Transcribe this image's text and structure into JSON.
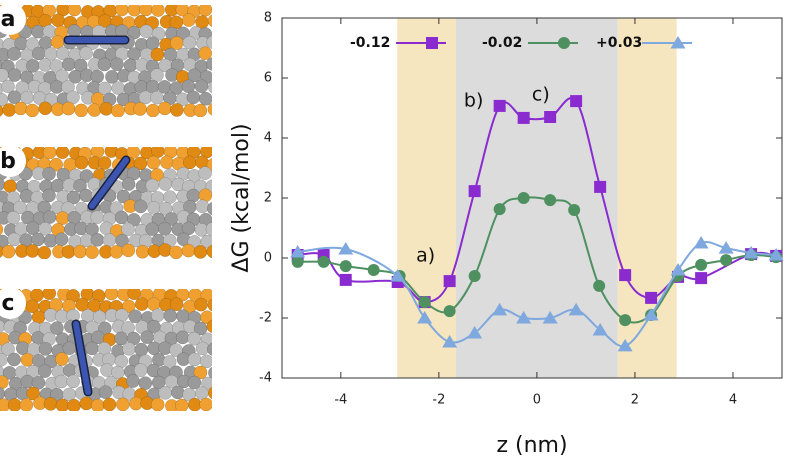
{
  "panels": [
    {
      "label": "a"
    },
    {
      "label": "b"
    },
    {
      "label": "c"
    }
  ],
  "chart_data": {
    "type": "line",
    "xlabel": "z (nm)",
    "ylabel": "ΔG (kcal/mol)",
    "xlim": [
      -5.2,
      5
    ],
    "ylim": [
      -4,
      8
    ],
    "xticks": [
      -4,
      -2,
      0,
      2,
      4
    ],
    "yticks": [
      -4,
      -2,
      0,
      2,
      4,
      6,
      8
    ],
    "regions": [
      {
        "from": -2.85,
        "to": -1.65,
        "color": "#f6e6c0"
      },
      {
        "from": -1.65,
        "to": 1.65,
        "color": "#dcdcdc"
      },
      {
        "from": 1.65,
        "to": 2.85,
        "color": "#f6e6c0"
      }
    ],
    "legend": "top",
    "series": [
      {
        "name": "-0.12",
        "color": "#8a2bd0",
        "marker": "square",
        "x": [
          -4.88,
          -4.35,
          -3.9,
          -2.84,
          -2.29,
          -1.78,
          -1.27,
          -0.76,
          -0.27,
          0.27,
          0.8,
          1.29,
          1.8,
          2.33,
          2.88,
          3.35,
          4.37,
          4.88
        ],
        "values": [
          0.1,
          0.1,
          -0.73,
          -0.8,
          -1.47,
          -0.77,
          2.23,
          5.07,
          4.67,
          4.7,
          5.23,
          2.37,
          -0.57,
          -1.33,
          -0.63,
          -0.67,
          0.13,
          0.07
        ]
      },
      {
        "name": "-0.02",
        "color": "#4e9060",
        "marker": "circle",
        "x": [
          -4.88,
          -4.35,
          -3.9,
          -3.33,
          -2.8,
          -2.29,
          -1.78,
          -1.27,
          -0.76,
          -0.27,
          0.27,
          0.76,
          1.27,
          1.8,
          2.33,
          2.88,
          3.35,
          3.86,
          4.37,
          4.88
        ],
        "values": [
          -0.13,
          -0.13,
          -0.27,
          -0.4,
          -0.6,
          -1.47,
          -1.77,
          -0.6,
          1.63,
          2.0,
          1.93,
          1.6,
          -0.93,
          -2.07,
          -1.9,
          -0.6,
          -0.23,
          -0.07,
          0.1,
          0.03
        ]
      },
      {
        "name": "+0.03",
        "color": "#7fa8de",
        "marker": "triangle",
        "x": [
          -4.88,
          -3.9,
          -2.84,
          -2.29,
          -1.78,
          -1.27,
          -0.76,
          -0.27,
          0.27,
          0.8,
          1.29,
          1.8,
          2.33,
          2.88,
          3.35,
          3.86,
          4.37,
          4.88
        ],
        "values": [
          0.2,
          0.3,
          -0.6,
          -2.0,
          -2.8,
          -2.5,
          -1.73,
          -2.0,
          -2.0,
          -1.73,
          -2.4,
          -2.93,
          -1.9,
          -0.4,
          0.5,
          0.33,
          0.17,
          0.1
        ]
      }
    ],
    "annotations": [
      {
        "text": "a)",
        "x": -2.27,
        "y": 0.07
      },
      {
        "text": "b)",
        "x": -1.29,
        "y": 5.23
      },
      {
        "text": "c)",
        "x": 0.08,
        "y": 5.43
      }
    ]
  }
}
